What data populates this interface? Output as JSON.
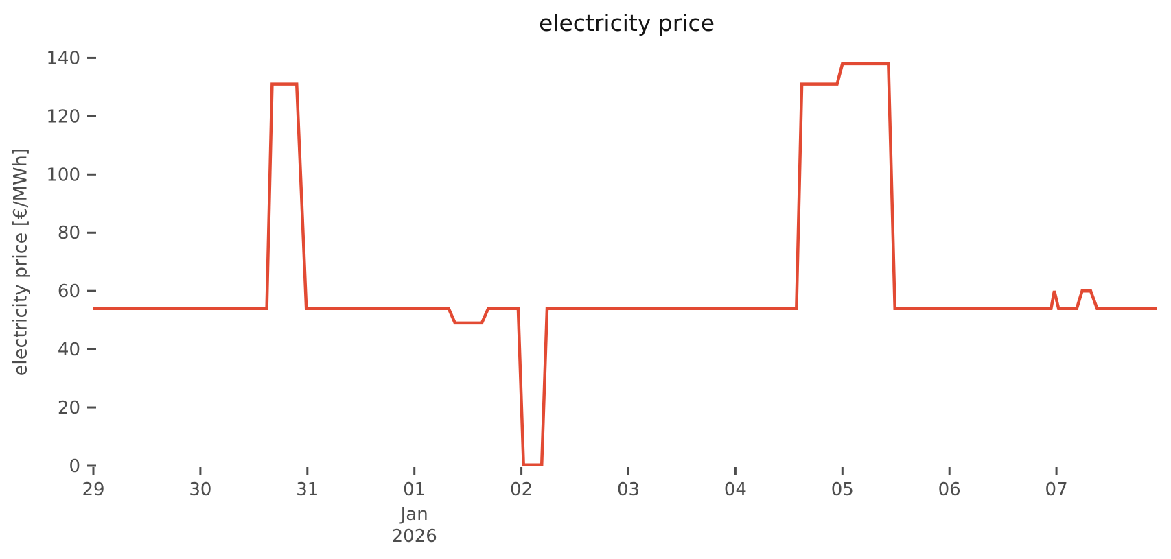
{
  "chart_data": {
    "type": "line",
    "title": "electricity price",
    "ylabel": "electricity price [€/MWh]",
    "xlabel": "",
    "legend": null,
    "grid": false,
    "background": "#ffffff",
    "series_color": "#e24a33",
    "tick_text_color": "#4d4d4d",
    "title_color": "#141414",
    "y_ticks": [
      0,
      20,
      40,
      60,
      80,
      100,
      120,
      140
    ],
    "ylim": [
      0,
      140
    ],
    "x_tick_labels": [
      "29",
      "30",
      "31",
      "01",
      "02",
      "03",
      "04",
      "05",
      "06",
      "07"
    ],
    "x_tick_days": [
      0,
      1,
      2,
      3,
      4,
      5,
      6,
      7,
      8,
      9
    ],
    "x_month_label": "Jan",
    "x_year_label": "2026",
    "x_month_under_tick_day": 3,
    "xlim_days": [
      0,
      9.97
    ],
    "baseline_value": 54,
    "series": [
      {
        "name": "electricity price",
        "unit": "€/MWh",
        "x_unit": "days since Dec 29 00:00",
        "points_day_value": [
          [
            0.0,
            54
          ],
          [
            1.62,
            54
          ],
          [
            1.67,
            131
          ],
          [
            1.9,
            131
          ],
          [
            1.99,
            54
          ],
          [
            3.32,
            54
          ],
          [
            3.38,
            49
          ],
          [
            3.63,
            49
          ],
          [
            3.69,
            54
          ],
          [
            3.97,
            54
          ],
          [
            4.02,
            0.3
          ],
          [
            4.19,
            0.3
          ],
          [
            4.24,
            54
          ],
          [
            6.57,
            54
          ],
          [
            6.62,
            131
          ],
          [
            6.95,
            131
          ],
          [
            7.0,
            138
          ],
          [
            7.43,
            138
          ],
          [
            7.49,
            54
          ],
          [
            8.95,
            54
          ],
          [
            8.98,
            60
          ],
          [
            9.02,
            54
          ],
          [
            9.19,
            54
          ],
          [
            9.24,
            60
          ],
          [
            9.32,
            60
          ],
          [
            9.38,
            54
          ],
          [
            9.94,
            54
          ]
        ]
      }
    ]
  }
}
